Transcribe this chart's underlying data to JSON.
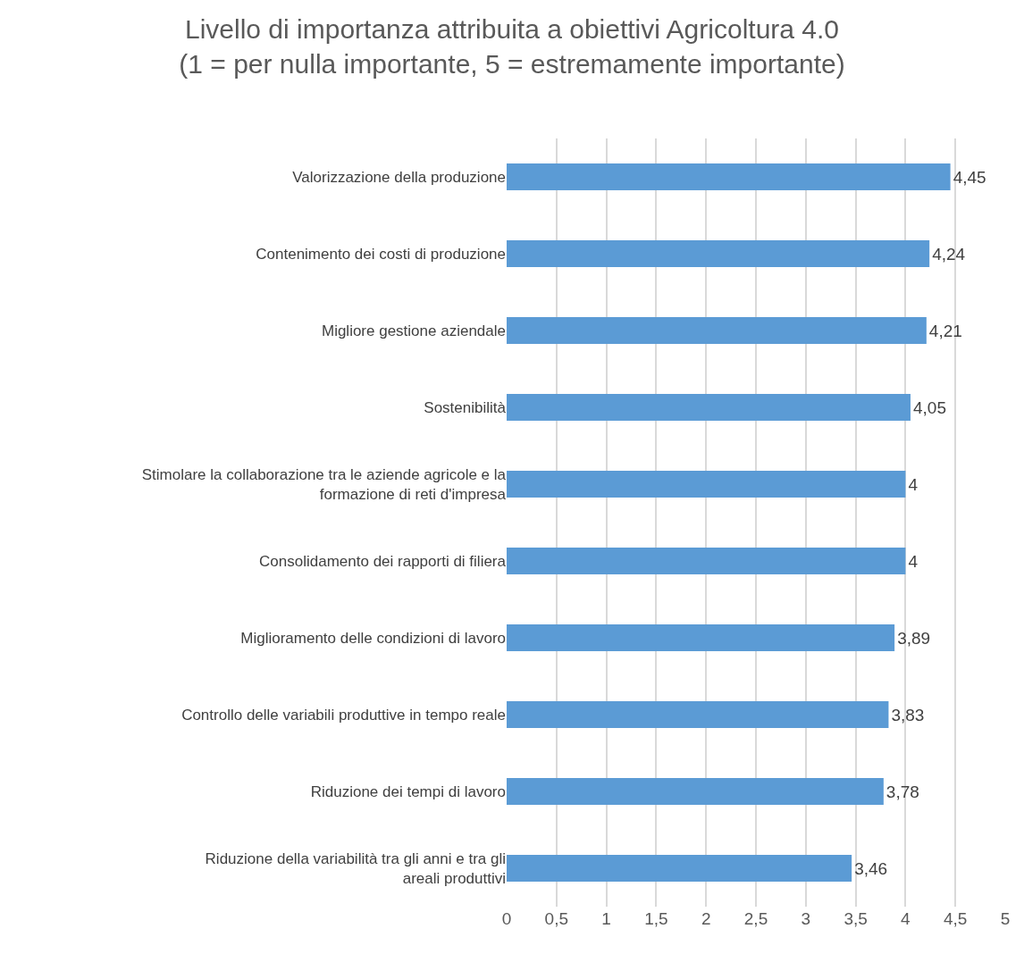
{
  "chart_data": {
    "type": "bar",
    "orientation": "horizontal",
    "title": "Livello di importanza attribuita a obiettivi Agricoltura 4.0 (1 = per nulla importante, 5 = estremamente importante)",
    "categories": [
      "Valorizzazione della produzione",
      "Contenimento dei costi di produzione",
      "Migliore gestione aziendale",
      "Sostenibilità",
      "Stimolare la collaborazione tra le aziende agricole e la formazione di reti d'impresa",
      "Consolidamento dei rapporti di filiera",
      "Miglioramento delle condizioni di lavoro",
      "Controllo delle variabili produttive in tempo reale",
      "Riduzione dei tempi di lavoro",
      "Riduzione della variabilità tra gli anni e tra gli areali produttivi"
    ],
    "values": [
      4.45,
      4.24,
      4.21,
      4.05,
      4,
      4,
      3.89,
      3.83,
      3.78,
      3.46
    ],
    "value_labels": [
      "4,45",
      "4,24",
      "4,21",
      "4,05",
      "4",
      "4",
      "3,89",
      "3,83",
      "3,78",
      "3,46"
    ],
    "color": "#5b9bd5",
    "xlim": [
      0,
      5
    ],
    "xticks": [
      0,
      {
        "value": 0.5,
        "label": "0,5"
      },
      1,
      {
        "value": 1.5,
        "label": "1,5"
      },
      2,
      {
        "value": 2.5,
        "label": "2,5"
      },
      3,
      {
        "value": 3.5,
        "label": "3,5"
      },
      4,
      {
        "value": 4.5,
        "label": "4,5"
      },
      5
    ],
    "grid": "x"
  }
}
